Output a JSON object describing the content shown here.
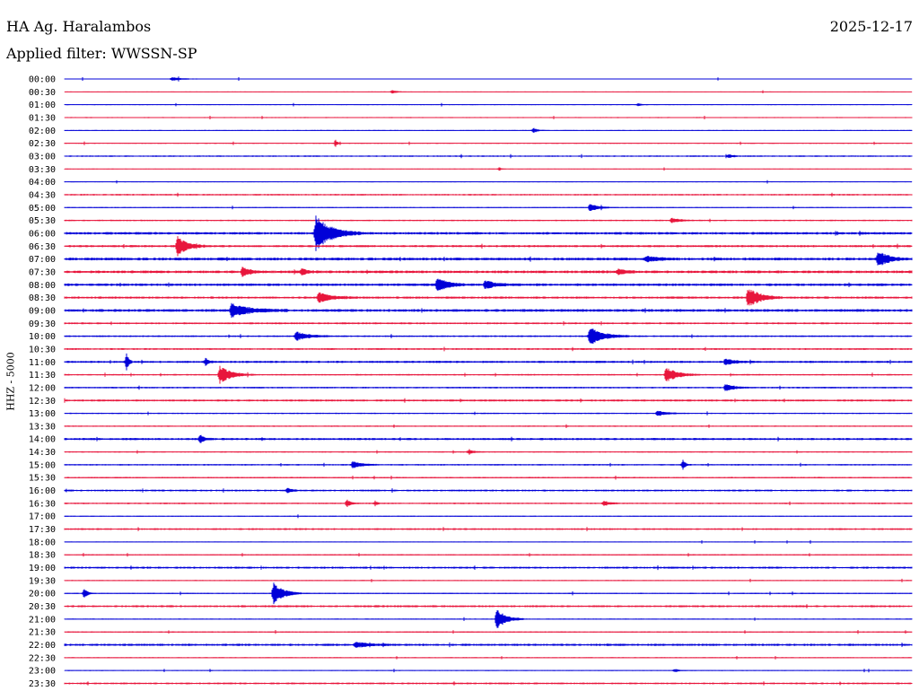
{
  "header": {
    "station": "HA Ag. Haralambos",
    "date": "2025-12-17",
    "filter_text": "Applied filter: WWSSN-SP"
  },
  "channel_label": "HHZ - 5000",
  "colors": {
    "trace_a": "#0000d8",
    "trace_b": "#e8163c",
    "background": "#ffffff",
    "text": "#000000"
  },
  "chart_data": {
    "type": "line",
    "description": "helicorder",
    "row_labels": [
      "00:00",
      "00:30",
      "01:00",
      "01:30",
      "02:00",
      "02:30",
      "03:00",
      "03:30",
      "04:00",
      "04:30",
      "05:00",
      "05:30",
      "06:00",
      "06:30",
      "07:00",
      "07:30",
      "08:00",
      "08:30",
      "09:00",
      "09:30",
      "10:00",
      "10:30",
      "11:00",
      "11:30",
      "12:00",
      "12:30",
      "13:00",
      "13:30",
      "14:00",
      "14:30",
      "15:00",
      "15:30",
      "16:00",
      "16:30",
      "17:00",
      "17:30",
      "18:00",
      "18:30",
      "19:00",
      "19:30",
      "20:00",
      "20:30",
      "21:00",
      "21:30",
      "22:00",
      "22:30",
      "23:00",
      "23:30"
    ],
    "row_minutes": 30,
    "noise_level": [
      0.5,
      0.4,
      0.5,
      0.6,
      0.5,
      0.6,
      0.8,
      0.4,
      0.5,
      0.9,
      0.6,
      0.8,
      1.4,
      1.2,
      1.5,
      1.5,
      1.4,
      1.2,
      1.5,
      1.0,
      0.9,
      1.0,
      1.2,
      0.8,
      0.9,
      1.1,
      0.7,
      0.7,
      1.2,
      0.7,
      0.8,
      0.8,
      1.0,
      0.8,
      0.6,
      1.0,
      0.5,
      0.7,
      1.1,
      0.6,
      0.7,
      1.1,
      0.6,
      0.7,
      1.2,
      0.6,
      0.5,
      1.0
    ],
    "events": [
      {
        "row": 0,
        "minute": 3.8,
        "amp": 2,
        "dur": 1.0
      },
      {
        "row": 1,
        "minute": 11.6,
        "amp": 2,
        "dur": 0.5
      },
      {
        "row": 2,
        "minute": 20.3,
        "amp": 1.5,
        "dur": 0.4
      },
      {
        "row": 4,
        "minute": 16.6,
        "amp": 3,
        "dur": 0.4
      },
      {
        "row": 5,
        "minute": 9.6,
        "amp": 4,
        "dur": 0.2
      },
      {
        "row": 6,
        "minute": 23.5,
        "amp": 2,
        "dur": 0.6
      },
      {
        "row": 7,
        "minute": 15.4,
        "amp": 2,
        "dur": 0.2
      },
      {
        "row": 10,
        "minute": 18.6,
        "amp": 5,
        "dur": 0.9
      },
      {
        "row": 11,
        "minute": 21.5,
        "amp": 3,
        "dur": 0.8
      },
      {
        "row": 12,
        "minute": 8.9,
        "amp": 20,
        "dur": 1.6
      },
      {
        "row": 13,
        "minute": 4.0,
        "amp": 11,
        "dur": 1.0
      },
      {
        "row": 14,
        "minute": 20.6,
        "amp": 3,
        "dur": 1.2
      },
      {
        "row": 14,
        "minute": 28.8,
        "amp": 10,
        "dur": 1.0
      },
      {
        "row": 15,
        "minute": 6.3,
        "amp": 5,
        "dur": 0.8
      },
      {
        "row": 15,
        "minute": 8.4,
        "amp": 4,
        "dur": 0.6
      },
      {
        "row": 15,
        "minute": 19.6,
        "amp": 3,
        "dur": 0.8
      },
      {
        "row": 16,
        "minute": 13.2,
        "amp": 9,
        "dur": 1.0
      },
      {
        "row": 16,
        "minute": 14.9,
        "amp": 5,
        "dur": 1.0
      },
      {
        "row": 17,
        "minute": 9.0,
        "amp": 5,
        "dur": 1.5
      },
      {
        "row": 17,
        "minute": 24.2,
        "amp": 12,
        "dur": 1.2
      },
      {
        "row": 18,
        "minute": 5.9,
        "amp": 7,
        "dur": 2.0
      },
      {
        "row": 20,
        "minute": 8.2,
        "amp": 5,
        "dur": 1.3
      },
      {
        "row": 20,
        "minute": 18.6,
        "amp": 10,
        "dur": 1.4
      },
      {
        "row": 22,
        "minute": 2.2,
        "amp": 11,
        "dur": 0.2
      },
      {
        "row": 22,
        "minute": 5.0,
        "amp": 4,
        "dur": 0.3
      },
      {
        "row": 22,
        "minute": 23.4,
        "amp": 4,
        "dur": 0.8
      },
      {
        "row": 23,
        "minute": 5.5,
        "amp": 10,
        "dur": 1.2
      },
      {
        "row": 23,
        "minute": 21.3,
        "amp": 9,
        "dur": 1.2
      },
      {
        "row": 24,
        "minute": 23.4,
        "amp": 4,
        "dur": 0.9
      },
      {
        "row": 26,
        "minute": 21.0,
        "amp": 3,
        "dur": 1.0
      },
      {
        "row": 28,
        "minute": 4.8,
        "amp": 5,
        "dur": 0.4
      },
      {
        "row": 29,
        "minute": 14.3,
        "amp": 2,
        "dur": 0.7
      },
      {
        "row": 30,
        "minute": 10.2,
        "amp": 4,
        "dur": 1.0
      },
      {
        "row": 30,
        "minute": 21.9,
        "amp": 5,
        "dur": 0.3
      },
      {
        "row": 32,
        "minute": 7.9,
        "amp": 3,
        "dur": 0.4
      },
      {
        "row": 33,
        "minute": 10.0,
        "amp": 4,
        "dur": 0.4
      },
      {
        "row": 33,
        "minute": 11.0,
        "amp": 3,
        "dur": 0.2
      },
      {
        "row": 33,
        "minute": 19.1,
        "amp": 3,
        "dur": 0.6
      },
      {
        "row": 40,
        "minute": 0.7,
        "amp": 6,
        "dur": 0.3
      },
      {
        "row": 40,
        "minute": 7.4,
        "amp": 13,
        "dur": 1.0
      },
      {
        "row": 42,
        "minute": 15.3,
        "amp": 12,
        "dur": 1.0
      },
      {
        "row": 44,
        "minute": 10.3,
        "amp": 3,
        "dur": 1.4
      },
      {
        "row": 46,
        "minute": 21.6,
        "amp": 2,
        "dur": 0.4
      }
    ]
  }
}
